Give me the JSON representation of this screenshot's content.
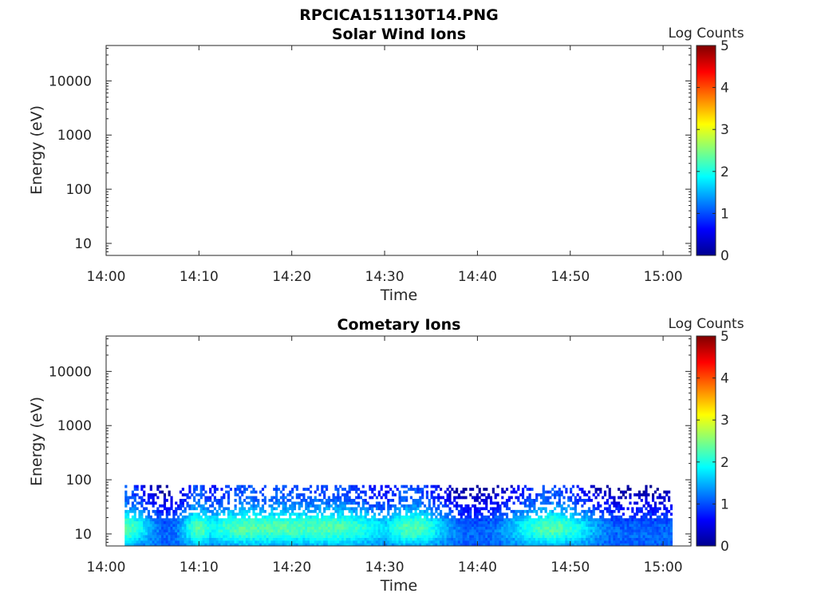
{
  "figure": {
    "title": "RPCICA151130T14.PNG"
  },
  "chart_data": [
    {
      "type": "heatmap",
      "title": "Solar Wind Ions",
      "xlabel": "Time",
      "ylabel": "Energy (eV)",
      "xlim": [
        "14:00",
        "15:03"
      ],
      "ylim": [
        6,
        45000
      ],
      "yscale": "log",
      "x_ticks": [
        "14:00",
        "14:10",
        "14:20",
        "14:30",
        "14:40",
        "14:50",
        "15:00"
      ],
      "y_ticks": [
        "10",
        "100",
        "1000",
        "10000"
      ],
      "colorbar": {
        "label": "Log Counts",
        "min": 0,
        "max": 5,
        "ticks": [
          "0",
          "1",
          "2",
          "3",
          "4",
          "5"
        ],
        "colormap": "jet"
      },
      "data_summary": "no counts recorded (empty)"
    },
    {
      "type": "heatmap",
      "title": "Cometary Ions",
      "xlabel": "Time",
      "ylabel": "Energy (eV)",
      "xlim": [
        "14:00",
        "15:03"
      ],
      "ylim": [
        6,
        45000
      ],
      "yscale": "log",
      "x_ticks": [
        "14:00",
        "14:10",
        "14:20",
        "14:30",
        "14:40",
        "14:50",
        "15:00"
      ],
      "y_ticks": [
        "10",
        "100",
        "1000",
        "10000"
      ],
      "colorbar": {
        "label": "Log Counts",
        "min": 0,
        "max": 5,
        "ticks": [
          "0",
          "1",
          "2",
          "3",
          "4",
          "5"
        ],
        "colormap": "jet"
      },
      "data_time_range": [
        "14:02",
        "15:01"
      ],
      "data_energy_range_eV": [
        6,
        80
      ],
      "data_summary": "log counts mostly 0.5-2.5 below ~80 eV; peak ~2.5 near 10-20 eV around 14:17-14:27 and 14:48"
    }
  ]
}
